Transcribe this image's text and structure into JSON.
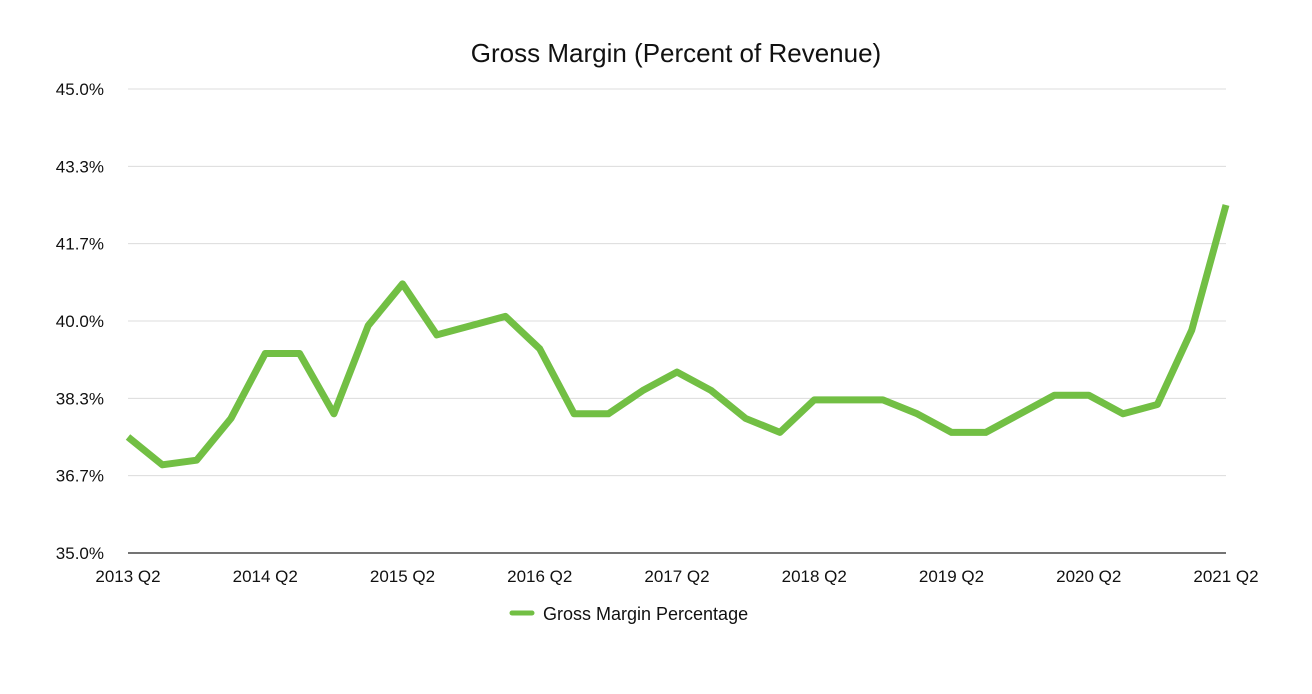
{
  "chart_data": {
    "type": "line",
    "title": "Gross Margin (Percent of Revenue)",
    "xlabel": "",
    "ylabel": "",
    "x": [
      "2013 Q2",
      "2013 Q3",
      "2013 Q4",
      "2014 Q1",
      "2014 Q2",
      "2014 Q3",
      "2014 Q4",
      "2015 Q1",
      "2015 Q2",
      "2015 Q3",
      "2015 Q4",
      "2016 Q1",
      "2016 Q2",
      "2016 Q3",
      "2016 Q4",
      "2017 Q1",
      "2017 Q2",
      "2017 Q3",
      "2017 Q4",
      "2018 Q1",
      "2018 Q2",
      "2018 Q3",
      "2018 Q4",
      "2019 Q1",
      "2019 Q2",
      "2019 Q3",
      "2019 Q4",
      "2020 Q1",
      "2020 Q2",
      "2020 Q3",
      "2020 Q4",
      "2021 Q1",
      "2021 Q2"
    ],
    "x_tick_labels": [
      "2013 Q2",
      "2014 Q2",
      "2015 Q2",
      "2016 Q2",
      "2017 Q2",
      "2018 Q2",
      "2019 Q2",
      "2020 Q2",
      "2021 Q2"
    ],
    "y_tick_labels": [
      "35.0%",
      "36.7%",
      "38.3%",
      "40.0%",
      "41.7%",
      "43.3%",
      "45.0%"
    ],
    "ylim": [
      35.0,
      45.0
    ],
    "grid": true,
    "legend_position": "bottom-center",
    "series": [
      {
        "name": "Gross Margin Percentage",
        "color": "#72bf44",
        "values": [
          37.5,
          36.9,
          37.0,
          37.9,
          39.3,
          39.3,
          38.0,
          39.9,
          40.8,
          39.7,
          39.9,
          40.1,
          39.4,
          38.0,
          38.0,
          38.5,
          38.9,
          38.5,
          37.9,
          37.6,
          38.3,
          38.3,
          38.3,
          38.0,
          37.6,
          37.6,
          38.0,
          38.4,
          38.4,
          38.0,
          38.2,
          39.8,
          42.5
        ]
      }
    ]
  }
}
